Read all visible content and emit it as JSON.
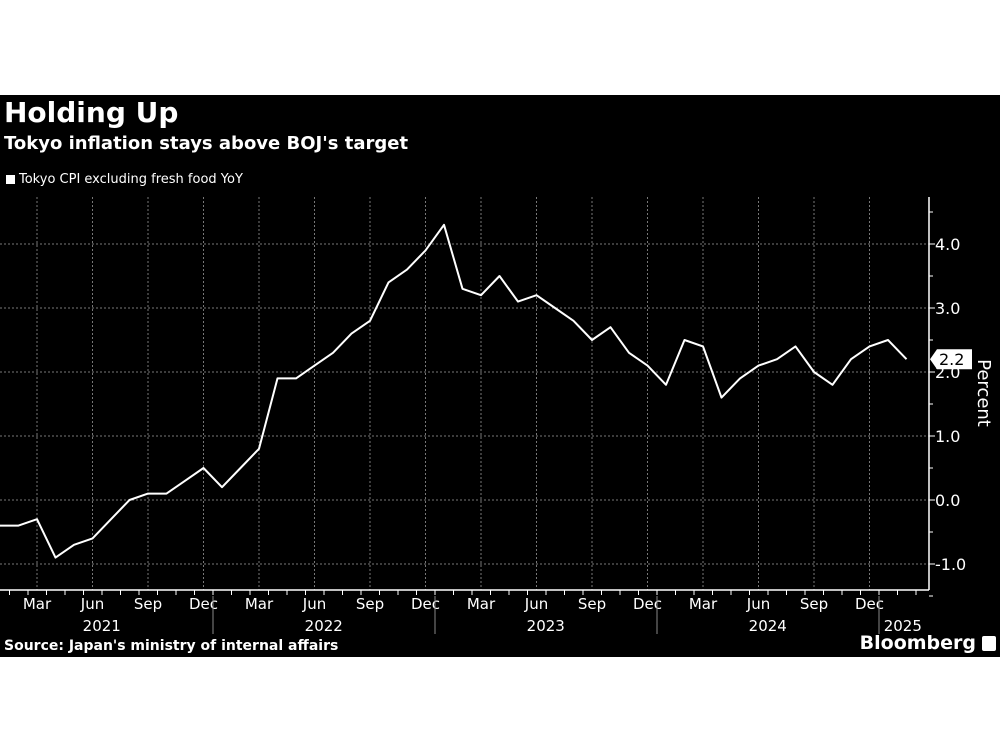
{
  "chart_data": {
    "type": "line",
    "title": "Holding Up",
    "subtitle": "Tokyo inflation stays above BOJ's target",
    "legend": [
      "Tokyo CPI excluding fresh food YoY"
    ],
    "ylabel": "Percent",
    "ylim": [
      -1.4,
      4.8
    ],
    "yticks": [
      "4.0",
      "3.0",
      "2.0",
      "1.0",
      "0.0",
      "-1.0"
    ],
    "ytick_values": [
      4,
      3,
      2,
      1,
      0,
      -1
    ],
    "grid": true,
    "x_start": "2021-01",
    "month_ticks": [
      {
        "label": "Mar",
        "i": 2
      },
      {
        "label": "Jun",
        "i": 5
      },
      {
        "label": "Sep",
        "i": 8
      },
      {
        "label": "Dec",
        "i": 11
      },
      {
        "label": "Mar",
        "i": 14
      },
      {
        "label": "Jun",
        "i": 17
      },
      {
        "label": "Sep",
        "i": 20
      },
      {
        "label": "Dec",
        "i": 23
      },
      {
        "label": "Mar",
        "i": 26
      },
      {
        "label": "Jun",
        "i": 29
      },
      {
        "label": "Sep",
        "i": 32
      },
      {
        "label": "Dec",
        "i": 35
      },
      {
        "label": "Mar",
        "i": 38
      },
      {
        "label": "Jun",
        "i": 41
      },
      {
        "label": "Sep",
        "i": 44
      },
      {
        "label": "Dec",
        "i": 47
      }
    ],
    "year_labels": [
      {
        "label": "2021",
        "i": 5.5
      },
      {
        "label": "2022",
        "i": 17.5
      },
      {
        "label": "2023",
        "i": 29.5
      },
      {
        "label": "2024",
        "i": 41.5
      },
      {
        "label": "2025",
        "i": 48.8
      }
    ],
    "series": [
      {
        "name": "Tokyo CPI excluding fresh food YoY",
        "values": [
          -0.4,
          -0.4,
          -0.3,
          -0.9,
          -0.7,
          -0.6,
          -0.3,
          0.0,
          0.1,
          0.1,
          0.3,
          0.5,
          0.2,
          0.5,
          0.8,
          1.9,
          1.9,
          2.1,
          2.3,
          2.6,
          2.8,
          3.4,
          3.6,
          3.9,
          4.3,
          3.3,
          3.2,
          3.5,
          3.1,
          3.2,
          3.0,
          2.8,
          2.5,
          2.7,
          2.3,
          2.1,
          1.8,
          2.5,
          2.4,
          1.6,
          1.9,
          2.1,
          2.2,
          2.4,
          2.0,
          1.8,
          2.2,
          2.4,
          2.5,
          2.2
        ]
      }
    ],
    "last_value_label": "2.2"
  },
  "footer": {
    "source": "Source: Japan's ministry of internal affairs",
    "brand": "Bloomberg"
  }
}
